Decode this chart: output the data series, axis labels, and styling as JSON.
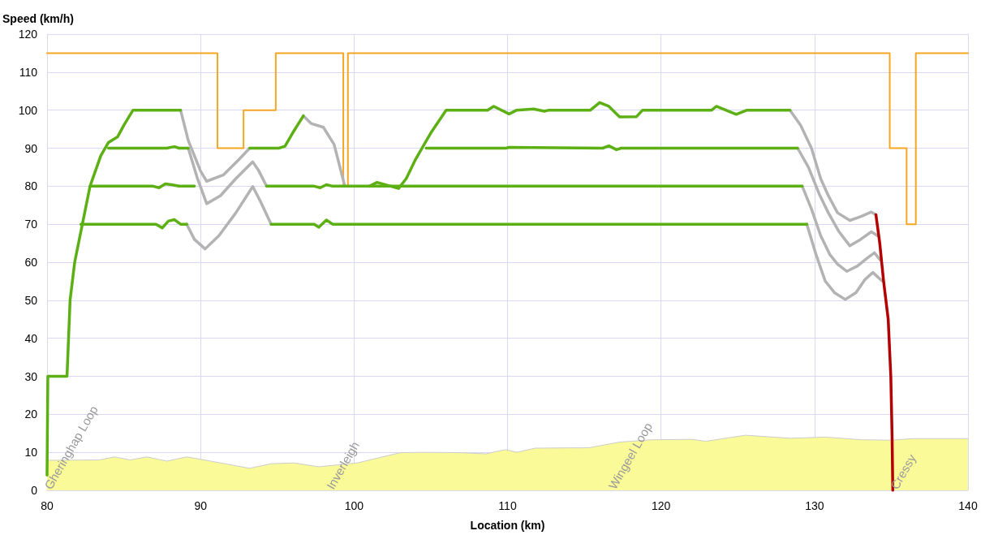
{
  "chart_data": {
    "type": "line",
    "xlabel": "Location (km)",
    "ylabel": "Speed (km/h)",
    "xlim": [
      80,
      140
    ],
    "xticks": [
      80,
      90,
      100,
      110,
      120,
      130,
      140
    ],
    "ylim": [
      0,
      120
    ],
    "yticks": [
      0,
      10,
      20,
      30,
      40,
      50,
      60,
      70,
      80,
      90,
      100,
      110,
      120
    ],
    "grid": true,
    "marker": "none",
    "annotations": [
      "Gheringhap Loop",
      "Inverleigh",
      "Wingeel Loop",
      "Cressy"
    ],
    "series": [
      {
        "type": "area",
        "color": "#fafa99",
        "x": [
          80,
          83.4,
          84.4,
          85.4,
          86.5,
          87.8,
          89.1,
          90.1,
          93.2,
          94.6,
          96.1,
          97.7,
          100.2,
          103,
          104.7,
          106.9,
          108.6,
          109.6,
          109.9,
          110.6,
          111.8,
          115.3,
          117.3,
          119.4,
          122,
          122.9,
          125.5,
          128.4,
          130.7,
          133.1,
          135,
          136.4,
          140
        ],
        "values": [
          7.9,
          8,
          8.8,
          8,
          8.8,
          7.7,
          8.8,
          8.1,
          5.8,
          7,
          7.2,
          6.2,
          7.2,
          9.9,
          10,
          9.9,
          9.6,
          10.5,
          10.7,
          10,
          11.1,
          11.2,
          12.7,
          13.3,
          13.4,
          12.9,
          14.5,
          13.7,
          14,
          13.3,
          13.2,
          13.6,
          13.6
        ]
      },
      {
        "type": "step",
        "color": "#f5a623",
        "x": [
          80,
          91.1,
          92.8,
          94.9,
          99.3,
          99.6,
          134.9,
          136,
          136.6,
          140
        ],
        "values": [
          115,
          90,
          100,
          115,
          80,
          115,
          90,
          70,
          115,
          115
        ]
      },
      {
        "color": "#b3b3b3",
        "x": [
          88.7,
          89.2,
          90,
          90.4,
          91.5,
          92.5,
          93.2
        ],
        "values": [
          100,
          92,
          84,
          81.3,
          83,
          87,
          90
        ]
      },
      {
        "color": "#b3b3b3",
        "x": [
          96.7,
          97.2,
          98,
          98.7,
          99.4
        ],
        "values": [
          98.5,
          96.5,
          95.5,
          91,
          80
        ]
      },
      {
        "color": "#b3b3b3",
        "x": [
          128.4,
          129.1,
          129.8,
          130.4,
          130.9,
          131.5,
          132.3,
          133,
          133.7,
          134
        ],
        "values": [
          100,
          96,
          90,
          82,
          77.5,
          73,
          71,
          72,
          73.2,
          72.5
        ]
      },
      {
        "color": "#b3b3b3",
        "x": [
          89.2,
          89.8,
          90.4,
          91.3,
          92.3,
          93.4,
          93.8,
          94.3
        ],
        "values": [
          90,
          82,
          75.4,
          77.5,
          82,
          86.4,
          84,
          80
        ]
      },
      {
        "color": "#b3b3b3",
        "x": [
          128.9,
          129.6,
          130.3,
          130.9,
          131.6,
          132.3,
          133,
          133.7,
          134.1
        ],
        "values": [
          90,
          85,
          78,
          73,
          68,
          64.3,
          66,
          68,
          67
        ]
      },
      {
        "color": "#b3b3b3",
        "x": [
          129.2,
          129.8,
          130.4,
          131,
          131.5,
          132.1,
          132.8,
          133.4,
          133.9,
          134.3
        ],
        "values": [
          80,
          74,
          67,
          62,
          59.5,
          57.6,
          59,
          61,
          62.5,
          60.5
        ]
      },
      {
        "color": "#b3b3b3",
        "x": [
          89.1,
          89.6,
          90.3,
          91.2,
          92.3,
          93.4,
          93.9,
          94.6
        ],
        "values": [
          70,
          66,
          63.5,
          67,
          73,
          79.9,
          76,
          70
        ]
      },
      {
        "color": "#b3b3b3",
        "x": [
          129.5,
          130.1,
          130.7,
          131.3,
          132,
          132.7,
          133.3,
          133.8,
          134.4
        ],
        "values": [
          70,
          62,
          55,
          52,
          50.2,
          52,
          55.5,
          57.3,
          55.1
        ]
      },
      {
        "color": "#5cb014",
        "x": [
          80,
          80.05,
          80.6,
          81.3,
          81.5,
          81.8,
          82.3,
          82.8,
          83.5,
          84,
          84.6,
          85,
          85.6,
          88.7
        ],
        "values": [
          4,
          30,
          30,
          30,
          50,
          60,
          70,
          80,
          88,
          91.5,
          93,
          96,
          100,
          100
        ]
      },
      {
        "color": "#5cb014",
        "x": [
          93.2,
          95.1,
          95.5,
          96,
          96.7
        ],
        "values": [
          90,
          90,
          90.5,
          94,
          98.5
        ]
      },
      {
        "color": "#5cb014",
        "x": [
          101,
          101.5,
          102.9,
          103.4,
          104,
          104.5,
          105,
          105.5,
          106,
          108.7,
          109.1,
          110.1,
          110.6,
          111.7,
          112.4,
          112.7,
          115.4,
          116,
          116.6,
          117.3,
          118.4,
          118.8,
          123.3,
          123.6,
          124.9,
          125.6,
          128.4
        ],
        "values": [
          80,
          81,
          79.4,
          82,
          87,
          90.5,
          94,
          97,
          100,
          100,
          101,
          99,
          100,
          100.3,
          99.7,
          100,
          100,
          102,
          101,
          98.2,
          98.3,
          100,
          100,
          101,
          98.9,
          100,
          100
        ]
      },
      {
        "color": "#5cb014",
        "x": [
          84,
          87.8,
          88.3,
          88.6,
          89.2
        ],
        "values": [
          90,
          90,
          90.4,
          90,
          90
        ]
      },
      {
        "color": "#5cb014",
        "x": [
          94.3,
          97.4,
          97.8,
          98.2,
          98.6,
          99.4,
          129.2
        ],
        "values": [
          80,
          80,
          79.6,
          80.4,
          80,
          80,
          80
        ]
      },
      {
        "color": "#5cb014",
        "x": [
          104.7,
          109.9,
          110.1,
          116.2,
          116.6,
          117.1,
          117.4,
          128.9
        ],
        "values": [
          90,
          90,
          90.2,
          90,
          90.6,
          89.6,
          90,
          90
        ]
      },
      {
        "color": "#5cb014",
        "x": [
          82.8,
          86.9,
          87.3,
          87.7,
          88.1,
          88.6,
          89.6
        ],
        "values": [
          80,
          80,
          79.6,
          80.6,
          80.4,
          80,
          80
        ]
      },
      {
        "color": "#5cb014",
        "x": [
          82.2,
          87.1,
          87.5,
          87.9,
          88.3,
          88.7,
          89.1
        ],
        "values": [
          70,
          70,
          69,
          70.8,
          71.2,
          70,
          70
        ]
      },
      {
        "color": "#5cb014",
        "x": [
          94.6,
          97.4,
          97.7,
          98.2,
          98.6,
          99,
          129.5
        ],
        "values": [
          70,
          70,
          69.2,
          71.1,
          70,
          70,
          70
        ]
      },
      {
        "color": "#b30000",
        "x": [
          134,
          134.25,
          134.5,
          134.8,
          134.97,
          135.05,
          135.1
        ],
        "values": [
          72.5,
          65,
          55,
          45,
          30,
          15,
          0
        ]
      }
    ]
  }
}
